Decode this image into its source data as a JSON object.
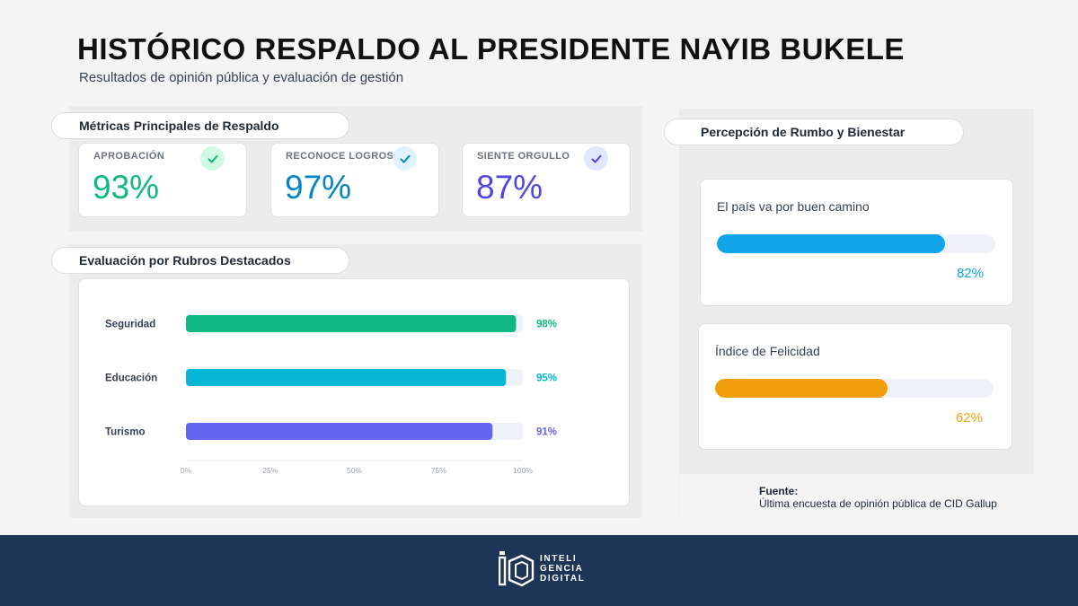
{
  "header": {
    "title": "HISTÓRICO RESPALDO AL PRESIDENTE NAYIB BUKELE",
    "subtitle": "Resultados de opinión pública y evaluación de gestión"
  },
  "sections": {
    "metrics_title": "Métricas Principales de Respaldo",
    "rubros_title": "Evaluación por Rubros Destacados",
    "rumbo_title": "Percepción de Rumbo y Bienestar"
  },
  "metrics": [
    {
      "label": "APROBACIÓN",
      "value": "93%",
      "color": "#10b981",
      "check_bg": "#d1fae5",
      "icon": "check-icon"
    },
    {
      "label": "RECONOCE LOGROS",
      "value": "97%",
      "color": "#0284c7",
      "check_bg": "#e0f2fe",
      "icon": "check-icon"
    },
    {
      "label": "SIENTE ORGULLO",
      "value": "87%",
      "color": "#4f46e5",
      "check_bg": "#e0e7ff",
      "icon": "check-icon"
    }
  ],
  "chart_data": [
    {
      "type": "bar",
      "orientation": "horizontal",
      "categories": [
        "Seguridad",
        "Educación",
        "Turismo"
      ],
      "values": [
        98,
        95,
        91
      ],
      "value_labels": [
        "98%",
        "95%",
        "91%"
      ],
      "colors": [
        "#10b981",
        "#06b6d4",
        "#6366f1"
      ],
      "xlim": [
        0,
        100
      ],
      "xticks": [
        "0%",
        "25%",
        "50%",
        "75%",
        "100%"
      ],
      "title": "Evaluación por Rubros Destacados"
    },
    {
      "type": "bar",
      "orientation": "horizontal",
      "categories": [
        "El país va por buen camino",
        "Índice de Felicidad"
      ],
      "values": [
        82,
        62
      ],
      "value_labels": [
        "82%",
        "62%"
      ],
      "colors": [
        "#0ea5e9",
        "#f59e0b"
      ],
      "xlim": [
        0,
        100
      ],
      "title": "Percepción de Rumbo y Bienestar"
    }
  ],
  "source": {
    "title": "Fuente:",
    "text": "Última encuesta de opinión pública de CID Gallup"
  },
  "footer": {
    "logo_lines": [
      "INTELI",
      "GENCIA",
      "DIGITAL"
    ],
    "footer_color": "#1f3558"
  }
}
